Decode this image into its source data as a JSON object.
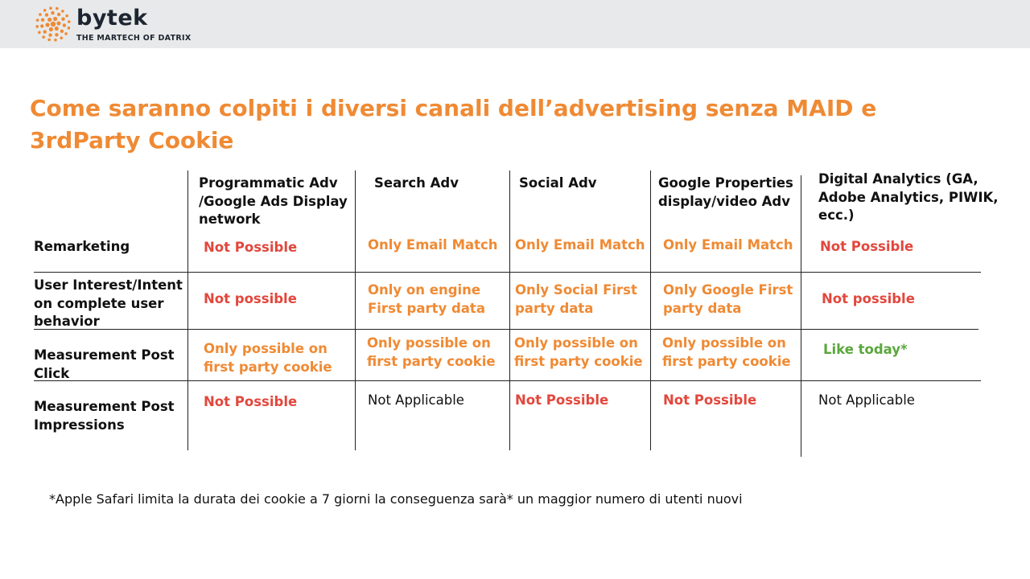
{
  "brand": {
    "name": "bytek",
    "tagline": "THE MARTECH OF DATRIX",
    "logo_color": "#ef8a34"
  },
  "title": "Come saranno colpiti i diversi canali dell’advertising senza MAID e 3rdParty Cookie",
  "columns": [
    "Programmatic Adv /Google Ads Display network",
    "Search Adv",
    "Social Adv",
    "Google Properties display/video Adv",
    "Digital Analytics (GA, Adobe Analytics, PIWIK, ecc.)"
  ],
  "rows": [
    {
      "label": "Remarketing",
      "cells": [
        "Not Possible",
        "Only Email  Match",
        "Only Email Match",
        "Only Email Match",
        "Not Possible"
      ],
      "styles": [
        "red",
        "orange",
        "orange",
        "orange",
        "red"
      ]
    },
    {
      "label": "User Interest/Intent on complete user behavior",
      "cells": [
        "Not possible",
        "Only on engine First party data",
        "Only Social First party data",
        "Only Google First party data",
        "Not possible"
      ],
      "styles": [
        "red",
        "orange",
        "orange",
        "orange",
        "red"
      ]
    },
    {
      "label": "Measurement Post Click",
      "cells": [
        "Only possible on first party cookie",
        "Only possible on first party cookie",
        "Only possible on first party cookie",
        "Only possible on first party cookie",
        "Like today*"
      ],
      "styles": [
        "orange",
        "orange",
        "orange",
        "orange",
        "green"
      ]
    },
    {
      "label": "Measurement Post Impressions",
      "cells": [
        "Not Possible",
        "Not Applicable",
        "Not Possible",
        "Not Possible",
        "Not Applicable"
      ],
      "styles": [
        "red",
        "plain",
        "red",
        "red",
        "plain"
      ]
    }
  ],
  "footnote": "*Apple Safari limita la durata dei cookie a 7 giorni la conseguenza sarà* un maggior numero di utenti nuovi",
  "colors": {
    "title": "#ef8a34",
    "orange_text": "#ef8a34",
    "red_text": "#e2473c",
    "green_text": "#5ba73d",
    "header_band": "#e8e9ea"
  }
}
